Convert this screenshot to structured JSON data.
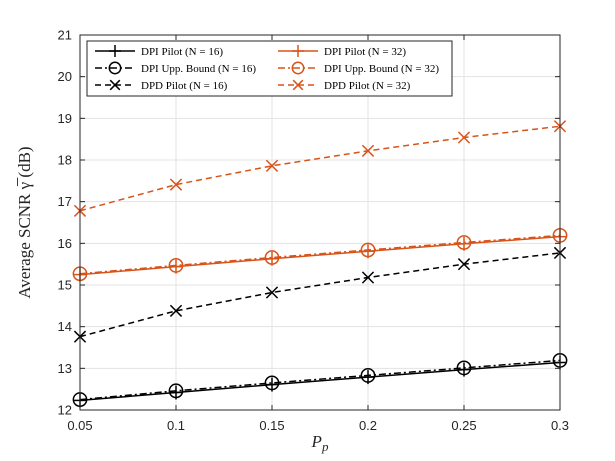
{
  "chart_data": {
    "type": "line",
    "title": "",
    "xlabel": "P_p",
    "xlabel_main": "P",
    "xlabel_sub": "p",
    "ylabel": "Average SCNR γ̅ (dB)",
    "xlim": [
      0.05,
      0.3
    ],
    "ylim": [
      12,
      21
    ],
    "grid": true,
    "legend_position": "top",
    "x": [
      0.05,
      0.1,
      0.15,
      0.2,
      0.25,
      0.3
    ],
    "x_tick_labels": [
      "0.05",
      "0.1",
      "0.15",
      "0.2",
      "0.25",
      "0.3"
    ],
    "y_ticks": [
      12,
      13,
      14,
      15,
      16,
      17,
      18,
      19,
      20,
      21
    ],
    "y_tick_labels": [
      "12",
      "13",
      "14",
      "15",
      "16",
      "17",
      "18",
      "19",
      "20",
      "21"
    ],
    "series": [
      {
        "name": "DPI Pilot (N = 16)",
        "legend_label": "DPI Pilot (N = 16)",
        "color": "#000000",
        "dash": "solid",
        "marker": "plus",
        "values": [
          12.23,
          12.42,
          12.61,
          12.79,
          12.97,
          13.14
        ]
      },
      {
        "name": "DPI Upp. Bound (N = 16)",
        "legend_label": "DPI Upp. Bound (N = 16)",
        "color": "#000000",
        "dash": "dashdot",
        "marker": "circle",
        "values": [
          12.25,
          12.46,
          12.65,
          12.83,
          13.01,
          13.19
        ]
      },
      {
        "name": "DPD Pilot (N = 16)",
        "legend_label": "DPD Pilot (N = 16)",
        "color": "#000000",
        "dash": "dashed",
        "marker": "x",
        "values": [
          13.76,
          14.38,
          14.82,
          15.18,
          15.5,
          15.77
        ]
      },
      {
        "name": "DPI Pilot (N = 32)",
        "legend_label": "DPI Pilot (N = 32)",
        "color": "#D95319",
        "dash": "solid",
        "marker": "plus",
        "values": [
          15.25,
          15.44,
          15.63,
          15.81,
          15.99,
          16.16
        ]
      },
      {
        "name": "DPI Upp. Bound (N = 32)",
        "legend_label": "DPI Upp. Bound (N = 32)",
        "color": "#D95319",
        "dash": "dashdot",
        "marker": "circle",
        "values": [
          15.27,
          15.47,
          15.66,
          15.84,
          16.02,
          16.19
        ]
      },
      {
        "name": "DPD Pilot (N = 32)",
        "legend_label": "DPD Pilot (N = 32)",
        "color": "#D95319",
        "dash": "dashed",
        "marker": "x",
        "values": [
          16.78,
          17.41,
          17.86,
          18.22,
          18.54,
          18.81
        ]
      }
    ]
  }
}
